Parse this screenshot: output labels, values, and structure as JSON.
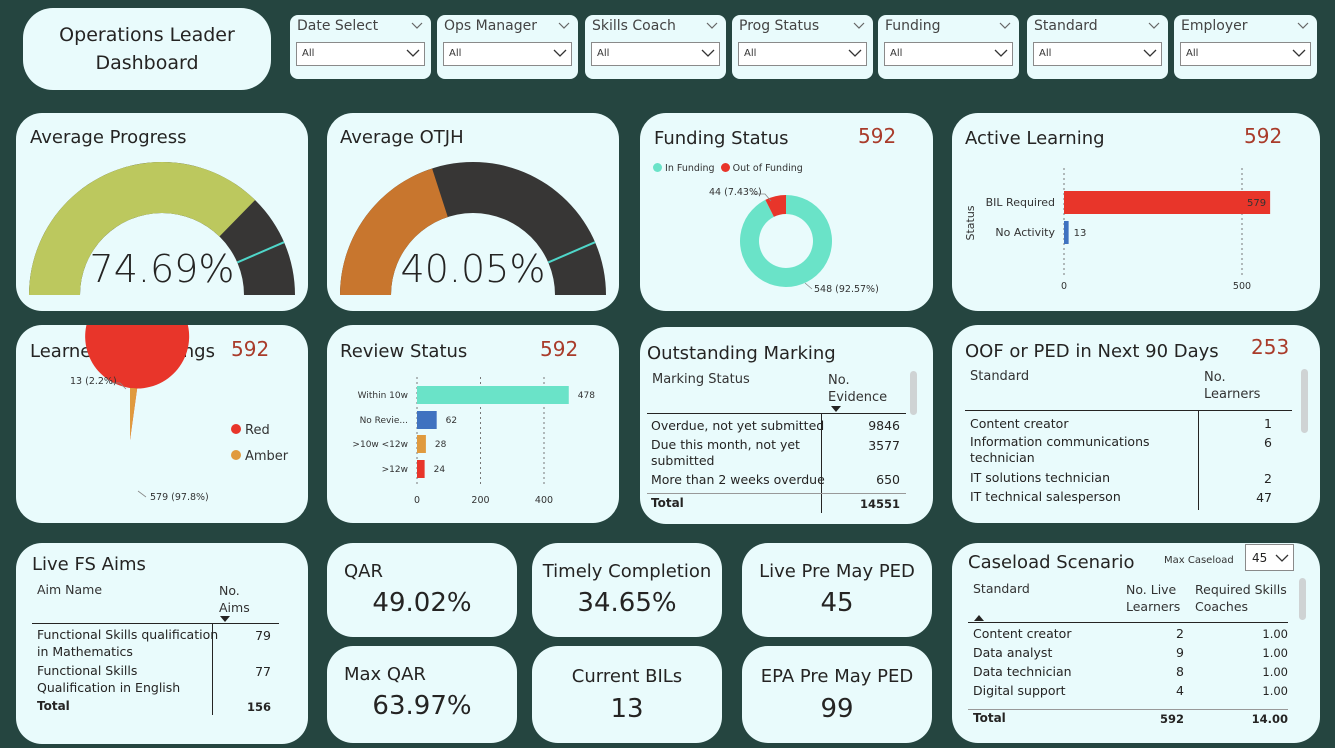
{
  "header": {
    "title_line1": "Operations Leader",
    "title_line2": "Dashboard"
  },
  "slicers": [
    {
      "label": "Date Select",
      "value": "All"
    },
    {
      "label": "Ops Manager",
      "value": "All"
    },
    {
      "label": "Skills Coach",
      "value": "All"
    },
    {
      "label": "Prog Status",
      "value": "All"
    },
    {
      "label": "Funding",
      "value": "All"
    },
    {
      "label": "Standard",
      "value": "All"
    },
    {
      "label": "Employer",
      "value": "All"
    }
  ],
  "avg_progress": {
    "title": "Average Progress",
    "value": "74.69%",
    "fraction": 0.7469,
    "target": 0.87
  },
  "avg_otjh": {
    "title": "Average OTJH",
    "value": "40.05%",
    "fraction": 0.4005,
    "target": 0.87
  },
  "funding_status": {
    "title": "Funding Status",
    "count": "592",
    "legend": [
      "In Funding",
      "Out of Funding"
    ],
    "label_out": "44 (7.43%)",
    "label_in": "548 (92.57%)",
    "colors": {
      "in": "#6ae3c8",
      "out": "#e8352a"
    }
  },
  "active_learning": {
    "title": "Active Learning",
    "count": "592",
    "axis_title": "Status",
    "ticks": [
      "0",
      "500"
    ]
  },
  "learner_risk": {
    "title": "Learner Risk Ratings",
    "count": "592",
    "legend": [
      "Red",
      "Amber"
    ],
    "label_amber": "13 (2.2%)",
    "label_red": "579 (97.8%)",
    "colors": {
      "red": "#e8352a",
      "amber": "#e09a3e"
    }
  },
  "review_status": {
    "title": "Review Status",
    "count": "592",
    "ticks": [
      "0",
      "200",
      "400"
    ]
  },
  "outstanding_marking": {
    "title": "Outstanding Marking",
    "col1": "Marking Status",
    "col2_line1": "No.",
    "col2_line2": "Evidence",
    "rows": [
      {
        "label_line1": "Overdue, not yet submitted",
        "label_line2": "",
        "value": "9846"
      },
      {
        "label_line1": "Due this month, not yet",
        "label_line2": "submitted",
        "value": "3577"
      },
      {
        "label_line1": "More than 2 weeks overdue",
        "label_line2": "",
        "value": "650"
      }
    ],
    "total_label": "Total",
    "total_value": "14551"
  },
  "oof_ped": {
    "title": "OOF or PED in Next 90 Days",
    "count": "253",
    "col1": "Standard",
    "col2_line1": "No.",
    "col2_line2": "Learners",
    "rows": [
      {
        "label_line1": "Content creator",
        "label_line2": "",
        "value": "1"
      },
      {
        "label_line1": "Information communications",
        "label_line2": "technician",
        "value": "6"
      },
      {
        "label_line1": "IT solutions technician",
        "label_line2": "",
        "value": "2"
      },
      {
        "label_line1": "IT technical salesperson",
        "label_line2": "",
        "value": "47"
      }
    ]
  },
  "live_fs_aims": {
    "title": "Live FS Aims",
    "col1": "Aim Name",
    "col2_line1": "No.",
    "col2_line2": "Aims",
    "rows": [
      {
        "label_line1": "Functional Skills qualification",
        "label_line2": "in Mathematics",
        "value": "79"
      },
      {
        "label_line1": "Functional Skills",
        "label_line2": "Qualification in English",
        "value": "77"
      }
    ],
    "total_label": "Total",
    "total_value": "156"
  },
  "kpis": {
    "qar": {
      "label": "QAR",
      "value": "49.02%"
    },
    "timely_completion": {
      "label": "Timely Completion",
      "value": "34.65%"
    },
    "live_pre_may_ped": {
      "label": "Live Pre May PED",
      "value": "45"
    },
    "max_qar": {
      "label": "Max QAR",
      "value": "63.97%"
    },
    "current_bils": {
      "label": "Current BILs",
      "value": "13"
    },
    "epa_pre_may_ped": {
      "label": "EPA Pre May PED",
      "value": "99"
    }
  },
  "caseload": {
    "title": "Caseload Scenario",
    "max_label": "Max Caseload",
    "max_value": "45",
    "col1": "Standard",
    "col2_line1": "No. Live",
    "col2_line2": "Learners",
    "col3_line1": "Required Skills",
    "col3_line2": "Coaches",
    "rows": [
      {
        "label": "Content creator",
        "live": "2",
        "req": "1.00"
      },
      {
        "label": "Data analyst",
        "live": "9",
        "req": "1.00"
      },
      {
        "label": "Data technician",
        "live": "8",
        "req": "1.00"
      },
      {
        "label": "Digital support",
        "live": "4",
        "req": "1.00"
      }
    ],
    "total_label": "Total",
    "total_live": "592",
    "total_req": "14.00"
  },
  "chart_data": [
    {
      "type": "pie",
      "title": "Funding Status",
      "categories": [
        "In Funding",
        "Out of Funding"
      ],
      "values": [
        548,
        44
      ],
      "labels": [
        "548 (92.57%)",
        "44 (7.43%)"
      ]
    },
    {
      "type": "bar",
      "title": "Active Learning",
      "ylabel": "Status",
      "categories": [
        "BIL Required",
        "No Activity"
      ],
      "values": [
        579,
        13
      ],
      "xlim": [
        0,
        600
      ],
      "colors": [
        "#e8352a",
        "#3f72c0"
      ]
    },
    {
      "type": "pie",
      "title": "Learner Risk Ratings",
      "categories": [
        "Red",
        "Amber"
      ],
      "values": [
        579,
        13
      ],
      "labels": [
        "579 (97.8%)",
        "13 (2.2%)"
      ]
    },
    {
      "type": "bar",
      "title": "Review Status",
      "categories": [
        "Within 10w",
        "No Revie...",
        ">10w <12w",
        ">12w"
      ],
      "values": [
        478,
        62,
        28,
        24
      ],
      "xlim": [
        0,
        500
      ],
      "colors": [
        "#6ae3c8",
        "#3f72c0",
        "#e09a3e",
        "#e8352a"
      ]
    }
  ]
}
